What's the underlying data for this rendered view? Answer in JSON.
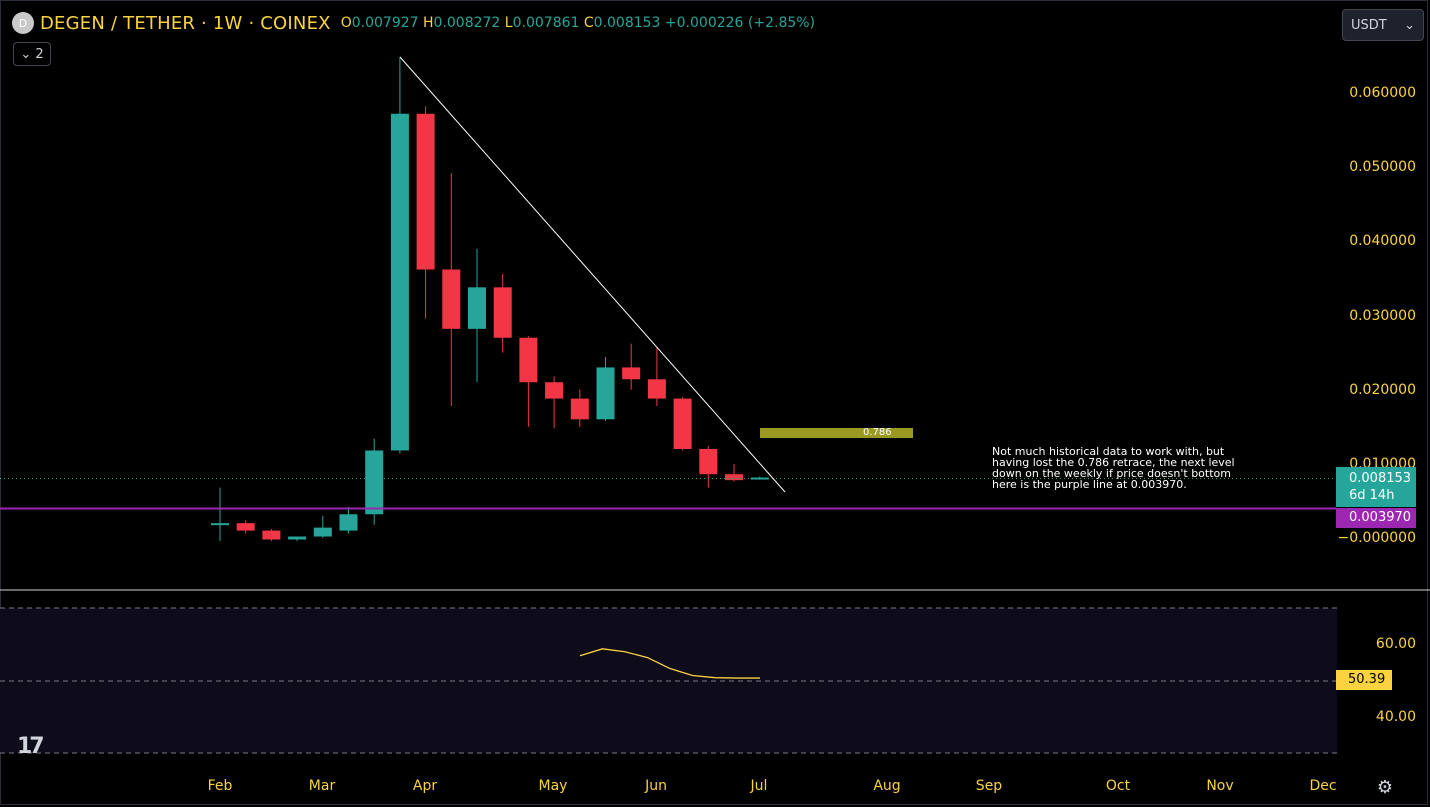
{
  "header": {
    "logo_letter": "D",
    "symbol_title": "DEGEN / TETHER · 1W · COINEX",
    "ohlc": {
      "o_key": "O",
      "o_val": "0.007927",
      "h_key": "H",
      "h_val": "0.008272",
      "l_key": "L",
      "l_val": "0.007861",
      "c_key": "C",
      "c_val": "0.008153",
      "change": "+0.000226 (+2.85%)"
    },
    "collapse_label": "⌄ 2",
    "currency_label": "USDT",
    "accent_up": "#26a69a",
    "accent_down": "#f23645",
    "accent_text": "#fbd341"
  },
  "price_axis": {
    "labels": [
      "0.060000",
      "0.050000",
      "0.040000",
      "0.030000",
      "0.020000",
      "0.010000",
      "−0.000000"
    ],
    "last_price": "0.008153",
    "countdown": "6d 14h",
    "horizontal_line_price": "0.003970",
    "horizontal_line_color": "#9c27b0"
  },
  "time_axis": {
    "labels": [
      "Feb",
      "Mar",
      "Apr",
      "May",
      "Jun",
      "Jul",
      "Aug",
      "Sep",
      "Oct",
      "Nov",
      "Dec"
    ]
  },
  "annotations": {
    "fib_label": "0.786",
    "note": "Not much historical data to work with, but\nhaving lost the 0.786 retrace, the next level\ndown on the weekly if price doesn't bottom\nhere is the purple line at 0.003970."
  },
  "indicator": {
    "levels": [
      "60.00",
      "40.00"
    ],
    "current_value": "50.39",
    "line_color": "#fbd341"
  },
  "chart_data": {
    "type": "candlestick",
    "interval": "1W",
    "candles": [
      {
        "o": 0.0018,
        "h": 0.0068,
        "l": -0.0004,
        "c": 0.002
      },
      {
        "o": 0.002,
        "h": 0.0024,
        "l": 0.0006,
        "c": 0.001
      },
      {
        "o": 0.001,
        "h": 0.0012,
        "l": -0.0004,
        "c": -0.0002
      },
      {
        "o": -0.0002,
        "h": 0.0002,
        "l": -0.0004,
        "c": 0.0002
      },
      {
        "o": 0.0002,
        "h": 0.003,
        "l": 0.0,
        "c": 0.0014
      },
      {
        "o": 0.001,
        "h": 0.0042,
        "l": 0.0006,
        "c": 0.0032
      },
      {
        "o": 0.0032,
        "h": 0.0134,
        "l": 0.0018,
        "c": 0.0118
      },
      {
        "o": 0.0118,
        "h": 0.0648,
        "l": 0.0114,
        "c": 0.0572
      },
      {
        "o": 0.0572,
        "h": 0.0582,
        "l": 0.0296,
        "c": 0.0362
      },
      {
        "o": 0.0362,
        "h": 0.0492,
        "l": 0.0178,
        "c": 0.0282
      },
      {
        "o": 0.0282,
        "h": 0.039,
        "l": 0.021,
        "c": 0.0338
      },
      {
        "o": 0.0338,
        "h": 0.0356,
        "l": 0.025,
        "c": 0.027
      },
      {
        "o": 0.027,
        "h": 0.0272,
        "l": 0.015,
        "c": 0.021
      },
      {
        "o": 0.021,
        "h": 0.0218,
        "l": 0.0148,
        "c": 0.0188
      },
      {
        "o": 0.0188,
        "h": 0.02,
        "l": 0.015,
        "c": 0.016
      },
      {
        "o": 0.016,
        "h": 0.0244,
        "l": 0.0158,
        "c": 0.023
      },
      {
        "o": 0.023,
        "h": 0.0262,
        "l": 0.02,
        "c": 0.0214
      },
      {
        "o": 0.0214,
        "h": 0.0256,
        "l": 0.0178,
        "c": 0.0188
      },
      {
        "o": 0.0188,
        "h": 0.019,
        "l": 0.0118,
        "c": 0.012
      },
      {
        "o": 0.012,
        "h": 0.0124,
        "l": 0.0068,
        "c": 0.0086
      },
      {
        "o": 0.0086,
        "h": 0.01,
        "l": 0.0076,
        "c": 0.0078
      },
      {
        "o": 0.007927,
        "h": 0.008272,
        "l": 0.007861,
        "c": 0.008153
      }
    ],
    "indicator_series": [
      56.5,
      58.4,
      57.6,
      56.0,
      53.0,
      51.1,
      50.5,
      50.4,
      50.39
    ],
    "ylim": [
      -0.004,
      0.068
    ],
    "grid": false
  }
}
